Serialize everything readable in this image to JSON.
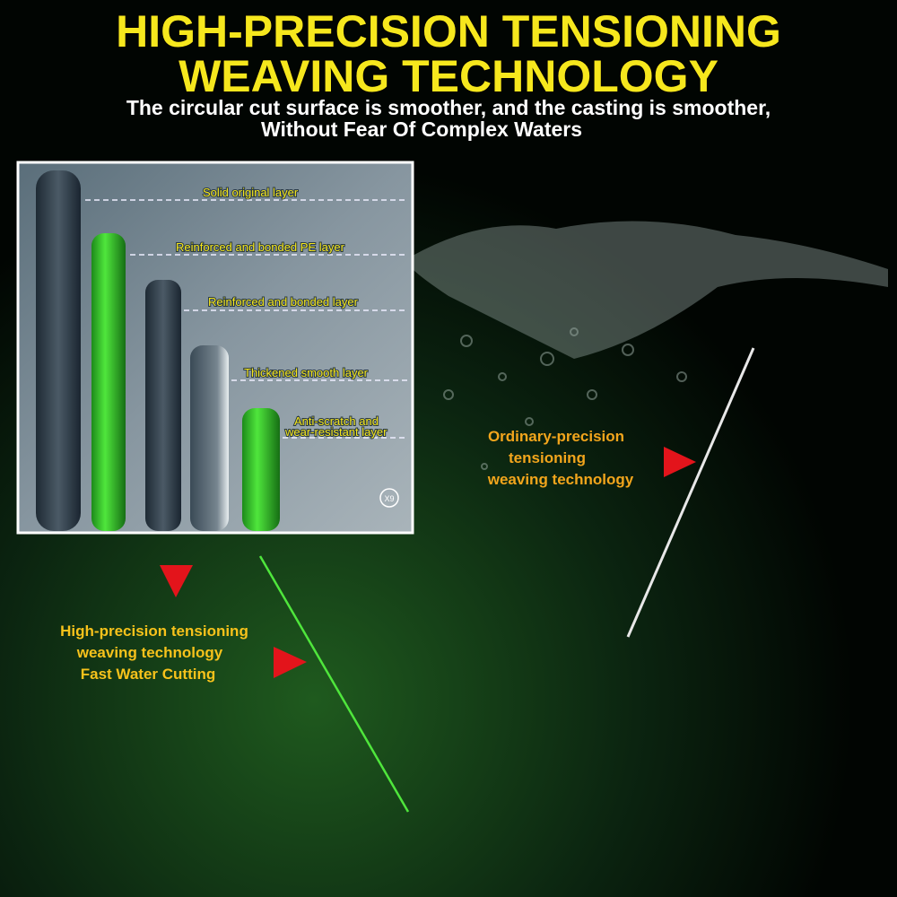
{
  "header": {
    "title": [
      "HIGH-PRECISION TENSIONING",
      "WEAVING TECHNOLOGY"
    ],
    "subtitle": [
      "The circular cut surface is smoother, and the casting is smoother,",
      "Without Fear Of Complex Waters"
    ]
  },
  "layers": [
    [
      "Solid original layer"
    ],
    [
      "Reinforced and bonded PE layer"
    ],
    [
      "Reinforced and bonded  layer"
    ],
    [
      "Thickened smooth layer"
    ],
    [
      "Anti-scratch and",
      "wear-resistant layer"
    ]
  ],
  "badge": "X9",
  "ordinary": [
    "Ordinary-precision",
    "tensioning",
    "weaving technology"
  ],
  "high_precision": [
    "High-precision tensioning",
    "weaving technology",
    "Fast Water Cutting"
  ]
}
